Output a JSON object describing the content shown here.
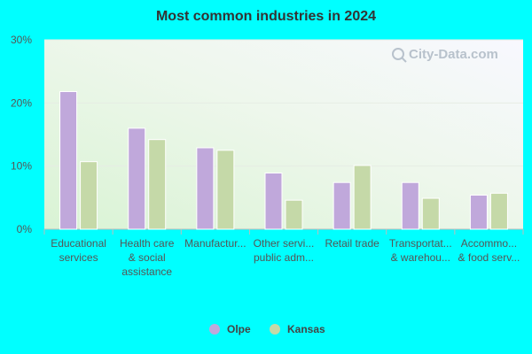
{
  "chart_data": {
    "type": "bar",
    "title": "Most common industries in 2024",
    "categories": [
      [
        "Educational",
        "services"
      ],
      [
        "Health care",
        "& social",
        "assistance"
      ],
      [
        "Manufactur..."
      ],
      [
        "Other servi...",
        "public adm..."
      ],
      [
        "Retail trade"
      ],
      [
        "Transportat...",
        "& warehou..."
      ],
      [
        "Accommo...",
        "& food serv..."
      ]
    ],
    "series": [
      {
        "name": "Olpe",
        "color": "#c0a8db",
        "values": [
          21.8,
          16.0,
          12.9,
          8.9,
          7.4,
          7.4,
          5.4
        ]
      },
      {
        "name": "Kansas",
        "color": "#c5d9a8",
        "values": [
          10.7,
          14.2,
          12.5,
          4.6,
          10.1,
          4.9,
          5.7
        ]
      }
    ],
    "ylim": [
      0,
      30
    ],
    "yticks": [
      {
        "value": 0,
        "label": "0%"
      },
      {
        "value": 10,
        "label": "10%"
      },
      {
        "value": 20,
        "label": "20%"
      },
      {
        "value": 30,
        "label": "30%"
      }
    ],
    "xlabel": "",
    "ylabel": "",
    "grid": true,
    "legend_placement": "bottom-center",
    "watermark": "City-Data.com"
  }
}
